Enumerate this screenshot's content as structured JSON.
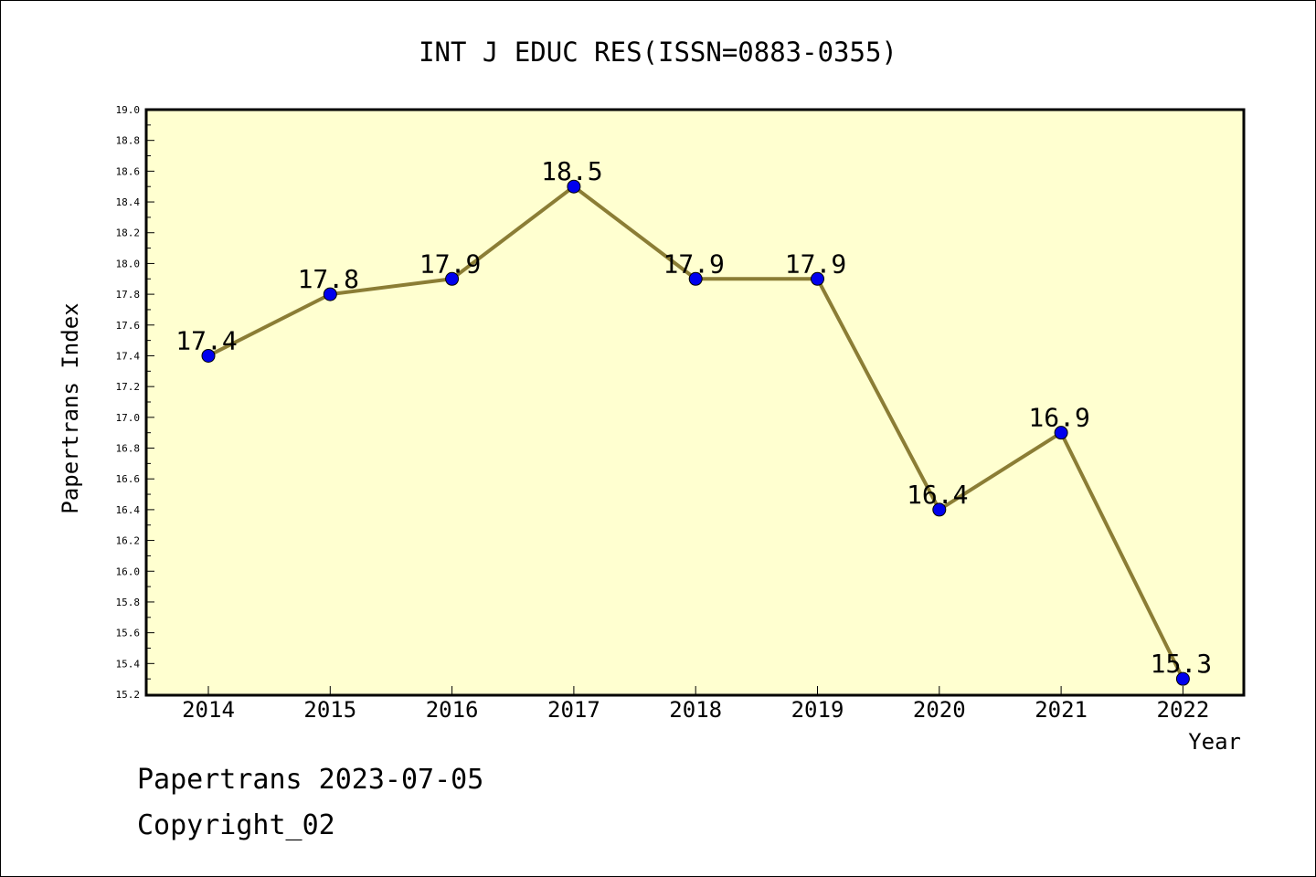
{
  "chart_data": {
    "type": "line",
    "title": "INT J EDUC RES(ISSN=0883-0355)",
    "xlabel": "Year",
    "ylabel": "Papertrans Index",
    "categories": [
      "2014",
      "2015",
      "2016",
      "2017",
      "2018",
      "2019",
      "2020",
      "2021",
      "2022"
    ],
    "series": [
      {
        "values": [
          17.4,
          17.8,
          17.9,
          18.5,
          17.9,
          17.9,
          16.4,
          16.9,
          15.3
        ],
        "labels": [
          "17.4",
          "17.8",
          "17.9",
          "18.5",
          "17.9",
          "17.9",
          "16.4",
          "16.9",
          "15.3"
        ]
      }
    ],
    "ylim": [
      15.2,
      19.0
    ],
    "yticks": [
      "15.2",
      "15.4",
      "15.6",
      "15.8",
      "16.0",
      "16.2",
      "16.4",
      "16.6",
      "16.8",
      "17.0",
      "17.2",
      "17.4",
      "17.6",
      "17.8",
      "18.0",
      "18.2",
      "18.4",
      "18.6",
      "18.8",
      "19.0"
    ],
    "grid": false,
    "legend": "none",
    "colors": {
      "plot_background": "#ffffd0",
      "line": "#8b7d35",
      "marker": "#0000ee",
      "axis": "#000000"
    }
  },
  "footer": {
    "line1": "Papertrans 2023-07-05",
    "line2": "Copyright_02"
  }
}
